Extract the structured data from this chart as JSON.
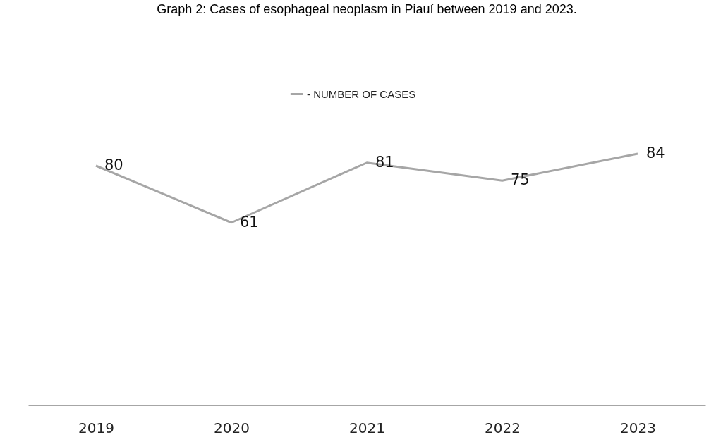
{
  "chart_data": {
    "type": "line",
    "title": "Graph 2: Cases of esophageal neoplasm in Piauí between 2019 and 2023.",
    "categories": [
      "2019",
      "2020",
      "2021",
      "2022",
      "2023"
    ],
    "series": [
      {
        "name": "- NUMBER OF CASES",
        "color": "#a6a6a6",
        "values": [
          80,
          61,
          81,
          75,
          84
        ]
      }
    ],
    "tick_labels": "x",
    "data_labels": true,
    "legend": "top",
    "grid": false,
    "marker": "none",
    "line_style": "solid"
  }
}
